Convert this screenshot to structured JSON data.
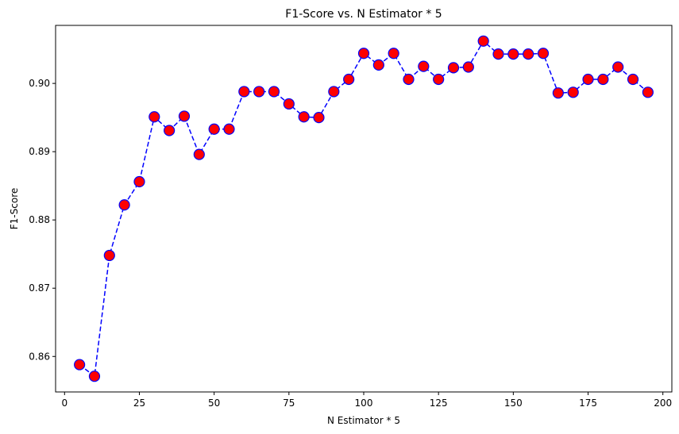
{
  "chart_data": {
    "type": "line",
    "title": "F1-Score vs. N Estimator * 5",
    "xlabel": "N Estimator * 5",
    "ylabel": "F1-Score",
    "xlim": [
      -3,
      203
    ],
    "ylim": [
      0.8548,
      0.9085
    ],
    "xticks": [
      0,
      25,
      50,
      75,
      100,
      125,
      150,
      175,
      200
    ],
    "yticks": [
      0.86,
      0.87,
      0.88,
      0.89,
      0.9
    ],
    "xtick_labels": [
      "0",
      "25",
      "50",
      "75",
      "100",
      "125",
      "150",
      "175",
      "200"
    ],
    "ytick_labels": [
      "0.86",
      "0.87",
      "0.88",
      "0.89",
      "0.90"
    ],
    "grid": false,
    "series": [
      {
        "line_color": "#0000ff",
        "line_style": "dashed",
        "marker": "circle",
        "marker_face_color": "#ff0000",
        "marker_edge_color": "#0000ff",
        "x": [
          5,
          10,
          15,
          20,
          25,
          30,
          35,
          40,
          45,
          50,
          55,
          60,
          65,
          70,
          75,
          80,
          85,
          90,
          95,
          100,
          105,
          110,
          115,
          120,
          125,
          130,
          135,
          140,
          145,
          150,
          155,
          160,
          165,
          170,
          175,
          180,
          185,
          190,
          195
        ],
        "y": [
          0.8588,
          0.8571,
          0.8748,
          0.8822,
          0.8856,
          0.8951,
          0.8931,
          0.8952,
          0.8896,
          0.8933,
          0.8933,
          0.8988,
          0.8988,
          0.8988,
          0.897,
          0.8951,
          0.895,
          0.8988,
          0.9006,
          0.9044,
          0.9027,
          0.9044,
          0.9006,
          0.9025,
          0.9006,
          0.9023,
          0.9024,
          0.9062,
          0.9043,
          0.9043,
          0.9043,
          0.9044,
          0.8986,
          0.8987,
          0.9006,
          0.9006,
          0.9024,
          0.9006,
          0.8987
        ]
      }
    ]
  }
}
